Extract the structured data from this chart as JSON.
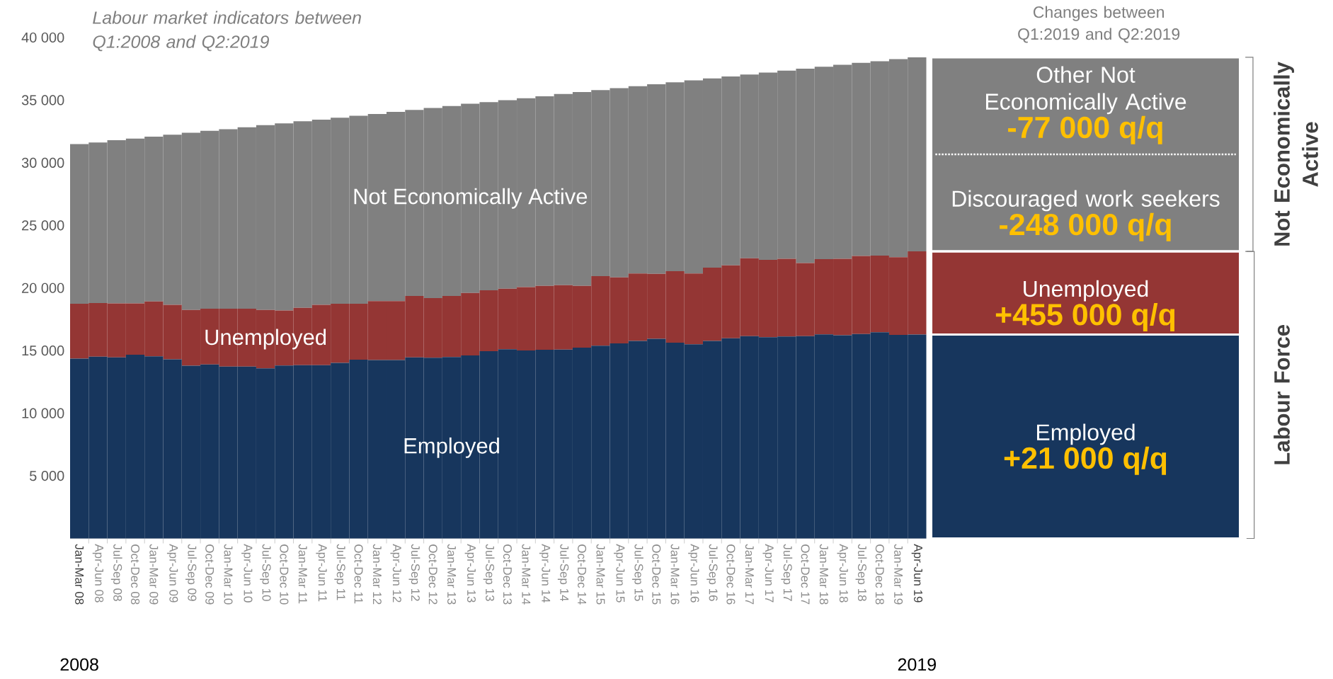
{
  "chart_data": [
    {
      "type": "bar",
      "stacked": true,
      "title": "Labour market indicators between Q1:2008 and Q2:2019",
      "categories": [
        "Jan-Mar 08",
        "Apr-Jun 08",
        "Jul-Sep 08",
        "Oct-Dec 08",
        "Jan-Mar 09",
        "Apr-Jun 09",
        "Jul-Sep 09",
        "Oct-Dec 09",
        "Jan-Mar 10",
        "Apr-Jun 10",
        "Jul-Sep 10",
        "Oct-Dec 10",
        "Jan-Mar 11",
        "Apr-Jun 11",
        "Jul-Sep 11",
        "Oct-Dec 11",
        "Jan-Mar 12",
        "Apr-Jun 12",
        "Jul-Sep 12",
        "Oct-Dec 12",
        "Jan-Mar 13",
        "Apr-Jun 13",
        "Jul-Sep 13",
        "Oct-Dec 13",
        "Jan-Mar 14",
        "Apr-Jun 14",
        "Jul-Sep 14",
        "Oct-Dec 14",
        "Jan-Mar 15",
        "Apr-Jun 15",
        "Jul-Sep 15",
        "Oct-Dec 15",
        "Jan-Mar 16",
        "Apr-Jun 16",
        "Jul-Sep 16",
        "Oct-Dec 16",
        "Jan-Mar 17",
        "Apr-Jun 17",
        "Jul-Sep 17",
        "Oct-Dec 17",
        "Jan-Mar 18",
        "Apr-Jun 18",
        "Jul-Sep 18",
        "Oct-Dec 18",
        "Jan-Mar 19",
        "Apr-Jun 19"
      ],
      "series": [
        {
          "name": "Employed",
          "color": "#17365d",
          "values": [
            14360,
            14510,
            14460,
            14670,
            14540,
            14300,
            13790,
            13890,
            13730,
            13730,
            13580,
            13810,
            13840,
            13840,
            14020,
            14280,
            14250,
            14250,
            14460,
            14430,
            14490,
            14620,
            14950,
            15110,
            15010,
            15060,
            15080,
            15240,
            15390,
            15580,
            15780,
            15940,
            15630,
            15500,
            15780,
            15990,
            16150,
            16070,
            16120,
            16150,
            16300,
            16230,
            16330,
            16460,
            16250,
            16280
          ]
        },
        {
          "name": "Unemployed",
          "color": "#943634",
          "values": [
            4380,
            4290,
            4310,
            4100,
            4390,
            4350,
            4460,
            4460,
            4620,
            4620,
            4670,
            4390,
            4570,
            4810,
            4720,
            4460,
            4700,
            4700,
            4910,
            4760,
            4880,
            4980,
            4860,
            4830,
            5060,
            5110,
            5140,
            4930,
            5560,
            5270,
            5380,
            5190,
            5710,
            5660,
            5850,
            5820,
            6230,
            6180,
            6210,
            5840,
            6000,
            6100,
            6230,
            6130,
            6210,
            6640
          ]
        },
        {
          "name": "Not Economically Active",
          "color": "#808080",
          "values": [
            12750,
            12820,
            13030,
            13160,
            13160,
            13590,
            14150,
            14200,
            14330,
            14490,
            14750,
            14950,
            14900,
            14790,
            14850,
            15010,
            14950,
            15110,
            14850,
            15180,
            15160,
            15110,
            15030,
            15050,
            15080,
            15140,
            15270,
            15470,
            14850,
            15110,
            14950,
            15140,
            15080,
            15420,
            15100,
            15080,
            14670,
            14950,
            15030,
            15520,
            15370,
            15490,
            15420,
            15520,
            15810,
            15500
          ]
        }
      ],
      "ylim": [
        0,
        40000
      ],
      "yticks": [
        {
          "value": 5000,
          "label": "5 000"
        },
        {
          "value": 10000,
          "label": "10 000"
        },
        {
          "value": 15000,
          "label": "15 000"
        },
        {
          "value": 20000,
          "label": "20 000"
        },
        {
          "value": 25000,
          "label": "25 000"
        },
        {
          "value": 30000,
          "label": "30 000"
        },
        {
          "value": 35000,
          "label": "35 000"
        },
        {
          "value": 40000,
          "label": "40 000"
        }
      ],
      "annotations": [
        "2008",
        "2019"
      ]
    },
    {
      "type": "other",
      "title": "Changes between Q1:2019 and Q2:2019",
      "categories": [
        "Other Not Economically Active",
        "Discouraged work seekers",
        "Unemployed",
        "Employed"
      ],
      "value_labels": [
        "-77 000 q/q",
        "-248 000 q/q",
        "+455 000 q/q",
        "+21 000 q/q"
      ],
      "colors": [
        "#808080",
        "#808080",
        "#943634",
        "#17365d"
      ],
      "annotations": [
        "Not Economically Active",
        "Labour Force"
      ]
    }
  ]
}
